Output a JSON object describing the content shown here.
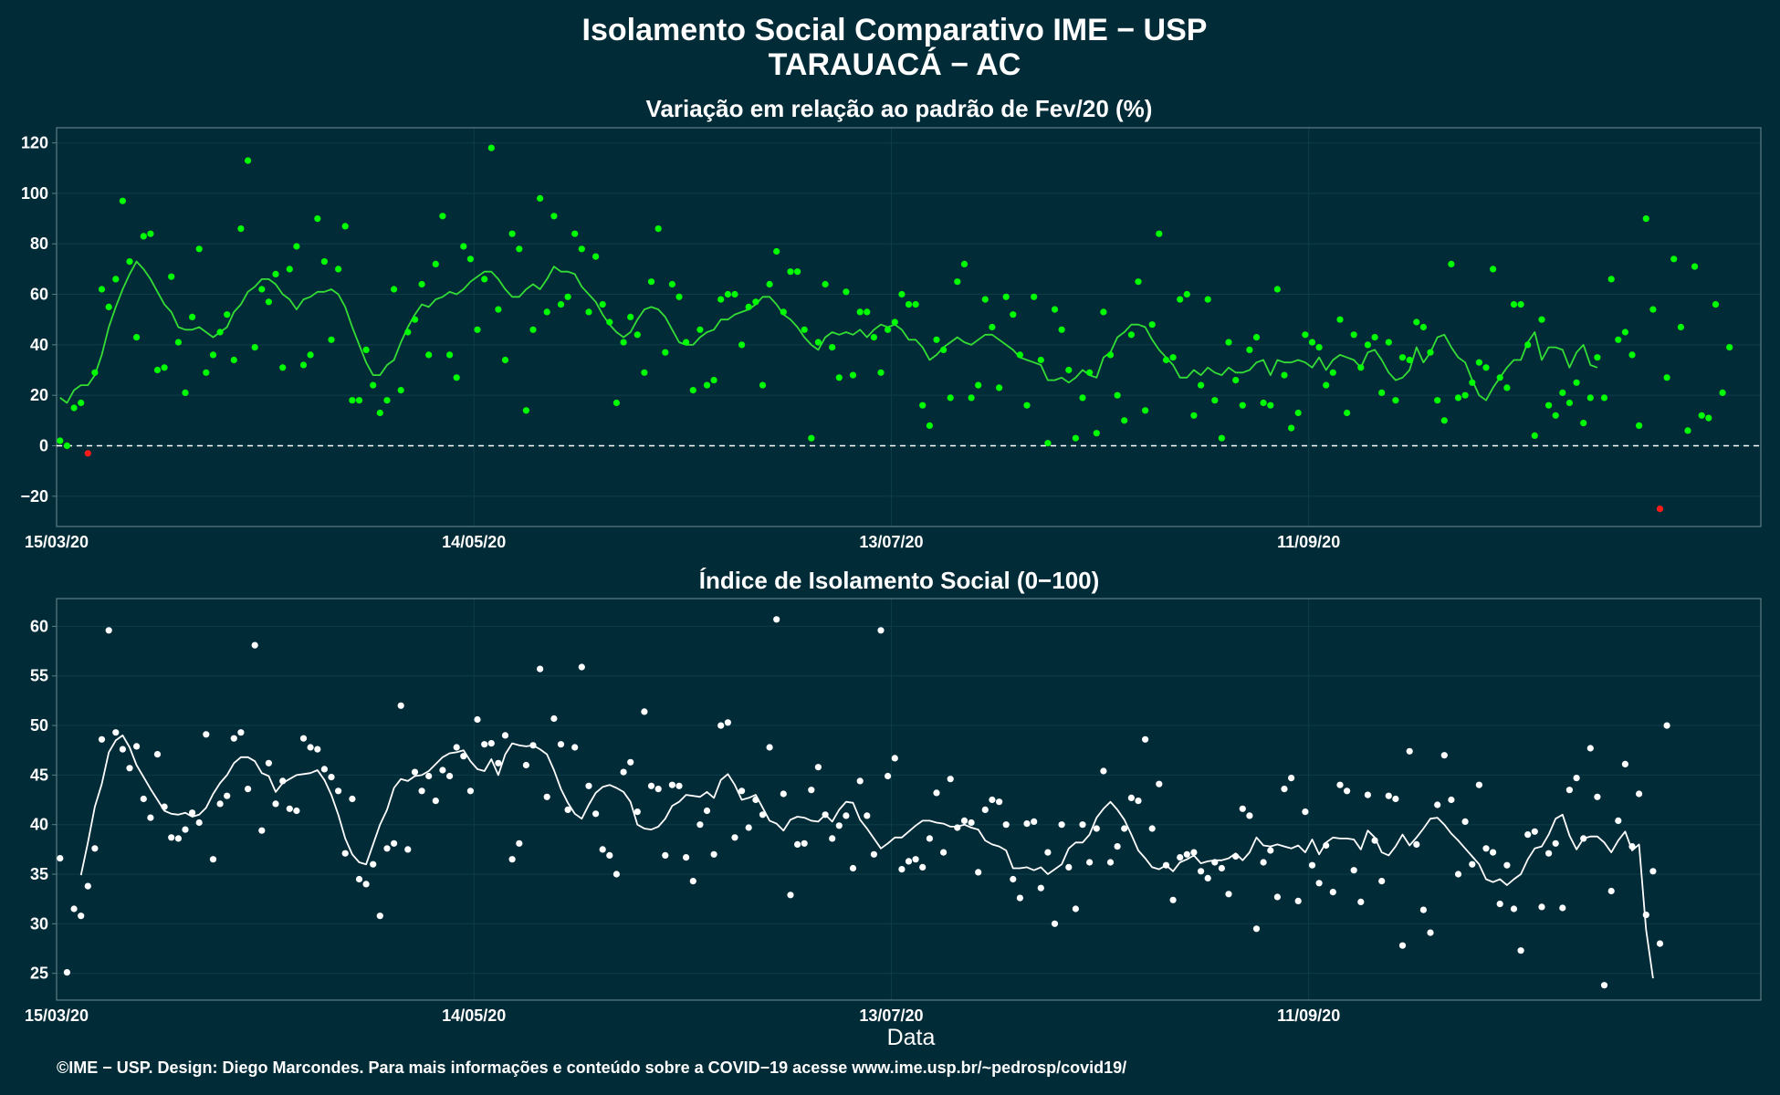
{
  "page": {
    "title_line1": "Isolamento Social Comparativo IME − USP",
    "title_line2": "TARAUACÁ − AC",
    "footer": "©IME − USP. Design: Diego Marcondes. Para mais informações e conteúdo sobre a COVID−19 acesse www.ime.usp.br/~pedrosp/covid19/",
    "xlabel": "Data"
  },
  "colors": {
    "background": "#022b38",
    "grid": "#0d3d47",
    "frame": "#5d7e86",
    "top_points": "#00ff00",
    "top_line": "#33dd33",
    "negative_points": "#ff1a1a",
    "bottom_points": "#ffffff",
    "bottom_line": "#ffffff",
    "zero_line": "#ffffff"
  },
  "chart_data": [
    {
      "type": "scatter",
      "title": "Variação em relação ao padrão de Fev/20 (%)",
      "xlabel": "",
      "ylabel": "",
      "x_start": "15/03/20",
      "x_end": "14/11/20",
      "x_ticks": [
        "15/03/20",
        "14/05/20",
        "13/07/20",
        "11/09/20"
      ],
      "y_ticks": [
        -20,
        0,
        20,
        40,
        60,
        80,
        100,
        120
      ],
      "ylim": [
        -32,
        126
      ],
      "grid": true,
      "reference_line": {
        "y": 0,
        "style": "dashed"
      },
      "series": [
        {
          "kind": "points",
          "values": [
            2,
            0,
            15,
            17,
            -3,
            29,
            62,
            55,
            66,
            97,
            73,
            43,
            83,
            84,
            30,
            31,
            67,
            41,
            21,
            51,
            78,
            29,
            36,
            45,
            52,
            34,
            86,
            113,
            39,
            62,
            57,
            68,
            31,
            70,
            79,
            32,
            36,
            90,
            73,
            42,
            70,
            87,
            18,
            18,
            38,
            24,
            13,
            18,
            62,
            22,
            45,
            50,
            64,
            36,
            72,
            91,
            36,
            27,
            79,
            74,
            46,
            66,
            118,
            54,
            34,
            84,
            78,
            14,
            46,
            98,
            53,
            91,
            56,
            59,
            84,
            78,
            53,
            75,
            56,
            49,
            17,
            41,
            51,
            44,
            29,
            65,
            86,
            37,
            64,
            59,
            41,
            22,
            46,
            24,
            26,
            58,
            60,
            60,
            40,
            55,
            57,
            24,
            64,
            77,
            53,
            69,
            69,
            46,
            3,
            41,
            64,
            39,
            27,
            61,
            28,
            53,
            53,
            43,
            29,
            46,
            49,
            60,
            56,
            56,
            16,
            8,
            42,
            38,
            19,
            65,
            72,
            19,
            24,
            58,
            47,
            23,
            59,
            52,
            36,
            16,
            59,
            34,
            1,
            54,
            46,
            30,
            3,
            19,
            29,
            5,
            53,
            36,
            20,
            10,
            44,
            65,
            14,
            48,
            84,
            34,
            35,
            58,
            60,
            12,
            24,
            58,
            18,
            3,
            41,
            26,
            16,
            38,
            43,
            17,
            16,
            62,
            28,
            7,
            13,
            44,
            41,
            39,
            24,
            29,
            50,
            13,
            44,
            31,
            40,
            43,
            21,
            41,
            18,
            35,
            34,
            49,
            47,
            37,
            18,
            10,
            72,
            19,
            20,
            25,
            33,
            31,
            70,
            27,
            23,
            56,
            56,
            40,
            4,
            50,
            16,
            12,
            21,
            17,
            25,
            9,
            19,
            35,
            19,
            66,
            42,
            45,
            36,
            8,
            90,
            54,
            -25,
            27,
            74,
            47,
            6,
            71,
            12,
            11,
            56,
            21,
            39
          ]
        },
        {
          "kind": "moving_average",
          "start_index": 0,
          "values": [
            19,
            17,
            22,
            24,
            24,
            28,
            36,
            47,
            55,
            62,
            68,
            73,
            70,
            66,
            61,
            56,
            53,
            47,
            46,
            46,
            47,
            45,
            43,
            45,
            47,
            53,
            56,
            61,
            63,
            66,
            66,
            64,
            60,
            58,
            54,
            58,
            59,
            61,
            61,
            62,
            60,
            55,
            47,
            40,
            33,
            28,
            28,
            32,
            34,
            41,
            47,
            52,
            56,
            55,
            58,
            59,
            61,
            60,
            62,
            65,
            67,
            69,
            69,
            66,
            62,
            59,
            59,
            62,
            64,
            62,
            66,
            71,
            69,
            69,
            68,
            63,
            60,
            57,
            52,
            48,
            45,
            43,
            45,
            50,
            54,
            55,
            54,
            51,
            46,
            41,
            40,
            40,
            43,
            45,
            46,
            50,
            50,
            52,
            53,
            54,
            56,
            59,
            59,
            56,
            52,
            50,
            47,
            43,
            40,
            38,
            43,
            45,
            44,
            45,
            44,
            46,
            43,
            46,
            48,
            47,
            48,
            46,
            42,
            42,
            39,
            34,
            36,
            39,
            41,
            43,
            41,
            40,
            42,
            44,
            44,
            42,
            40,
            38,
            35,
            34,
            33,
            32,
            26,
            26,
            27,
            25,
            27,
            30,
            28,
            27,
            35,
            37,
            43,
            45,
            48,
            48,
            47,
            42,
            38,
            35,
            32,
            27,
            27,
            30,
            28,
            31,
            29,
            28,
            31,
            29,
            29,
            30,
            33,
            34,
            28,
            34,
            33,
            33,
            34,
            33,
            31,
            35,
            30,
            34,
            36,
            35,
            34,
            31,
            37,
            38,
            34,
            29,
            26,
            27,
            30,
            39,
            33,
            37,
            43,
            44,
            39,
            35,
            33,
            26,
            20,
            18,
            23,
            27,
            31,
            34,
            34,
            41,
            45,
            34,
            39,
            39,
            38,
            31,
            37,
            40,
            32,
            31
          ]
        }
      ]
    },
    {
      "type": "scatter",
      "title": "Índice de Isolamento Social (0−100)",
      "xlabel": "Data",
      "ylabel": "",
      "x_start": "15/03/20",
      "x_end": "14/11/20",
      "x_ticks": [
        "15/03/20",
        "14/05/20",
        "13/07/20",
        "11/09/20"
      ],
      "y_ticks": [
        25,
        30,
        35,
        40,
        45,
        50,
        55,
        60
      ],
      "ylim": [
        22.3,
        62.8
      ],
      "grid": true,
      "series": [
        {
          "kind": "points",
          "values": [
            36.6,
            25.1,
            31.5,
            30.8,
            33.8,
            37.6,
            48.6,
            59.6,
            49.3,
            47.6,
            45.7,
            47.9,
            42.6,
            40.7,
            47.1,
            41.8,
            38.7,
            38.6,
            39.5,
            41.2,
            40.2,
            49.1,
            36.5,
            42.1,
            42.9,
            48.7,
            49.3,
            43.6,
            58.1,
            39.4,
            46.2,
            42.1,
            44.4,
            41.6,
            41.4,
            48.7,
            47.8,
            47.6,
            45.6,
            44.8,
            43.4,
            37.1,
            42.6,
            34.5,
            34.0,
            36.0,
            30.8,
            37.6,
            38.1,
            52.0,
            37.5,
            45.3,
            43.4,
            44.9,
            42.4,
            45.5,
            44.9,
            47.8,
            46.9,
            43.4,
            50.6,
            48.1,
            48.2,
            46.2,
            49.0,
            36.5,
            38.1,
            46.0,
            48.0,
            55.7,
            42.8,
            50.7,
            48.1,
            41.5,
            47.8,
            55.9,
            43.9,
            41.1,
            37.5,
            36.9,
            35.0,
            45.3,
            46.3,
            41.3,
            51.4,
            43.9,
            43.6,
            36.9,
            44.0,
            43.9,
            36.7,
            34.3,
            40.0,
            41.4,
            37.0,
            50.0,
            50.3,
            38.7,
            43.4,
            39.7,
            42.5,
            41.0,
            47.8,
            60.7,
            43.1,
            32.9,
            38.0,
            38.1,
            43.5,
            45.8,
            41.0,
            38.6,
            39.9,
            40.9,
            35.6,
            44.4,
            40.9,
            37.0,
            59.6,
            44.9,
            46.7,
            35.5,
            36.3,
            36.5,
            35.7,
            38.6,
            43.2,
            37.2,
            44.6,
            39.7,
            40.4,
            40.2,
            35.2,
            41.5,
            42.5,
            42.3,
            40.0,
            34.5,
            32.6,
            40.1,
            40.3,
            33.6,
            37.2,
            30.0,
            40.0,
            35.7,
            31.5,
            40.0,
            36.2,
            39.6,
            45.4,
            36.2,
            37.8,
            39.6,
            42.7,
            42.4,
            48.6,
            39.6,
            44.1,
            35.9,
            32.4,
            36.7,
            37.0,
            37.2,
            35.3,
            34.6,
            36.2,
            35.6,
            33.0,
            36.8,
            41.6,
            40.9,
            29.5,
            36.2,
            37.4,
            32.7,
            43.6,
            44.7,
            32.3,
            41.3,
            35.9,
            34.1,
            37.9,
            33.2,
            44.0,
            43.4,
            35.4,
            32.2,
            43.0,
            38.4,
            34.3,
            42.9,
            42.6,
            27.8,
            47.4,
            38.0,
            31.4,
            29.1,
            42.0,
            47.0,
            42.5,
            35.0,
            40.3,
            36.0,
            44.0,
            37.6,
            37.2,
            32.0,
            35.9,
            31.5,
            27.3,
            39.0,
            39.3,
            31.7,
            37.1,
            38.1,
            31.6,
            43.5,
            44.7,
            38.6,
            47.7,
            42.8,
            23.8,
            33.3,
            40.4,
            46.1,
            37.8,
            43.1,
            30.9,
            35.3,
            28.0,
            50.0
          ]
        },
        {
          "kind": "moving_average",
          "start_index": 3,
          "values": [
            34.9,
            38.2,
            41.8,
            44.1,
            47.3,
            48.5,
            49.0,
            47.8,
            46.0,
            44.8,
            43.6,
            42.5,
            41.4,
            41.1,
            41.0,
            41.2,
            40.8,
            41.0,
            41.7,
            43.1,
            44.2,
            45.0,
            46.2,
            46.8,
            46.8,
            46.4,
            45.2,
            44.9,
            43.3,
            44.2,
            44.6,
            45.0,
            45.1,
            45.2,
            45.5,
            44.5,
            43.0,
            41.0,
            38.6,
            37.0,
            36.2,
            36.0,
            38.0,
            40.0,
            41.5,
            43.7,
            44.6,
            44.4,
            44.9,
            45.0,
            45.4,
            46.1,
            46.8,
            47.2,
            47.3,
            47.5,
            46.4,
            45.6,
            45.4,
            46.6,
            45.0,
            47.1,
            48.2,
            48.0,
            47.9,
            48.0,
            47.6,
            47.1,
            45.5,
            43.6,
            42.2,
            41.1,
            40.6,
            42.0,
            43.2,
            43.8,
            44.0,
            43.7,
            43.3,
            42.3,
            40.0,
            39.6,
            39.5,
            39.8,
            40.6,
            41.9,
            42.3,
            43.0,
            42.9,
            42.8,
            43.3,
            42.7,
            44.5,
            45.1,
            44.0,
            42.5,
            42.7,
            43.0,
            41.7,
            40.4,
            40.1,
            39.4,
            40.5,
            40.8,
            40.7,
            40.4,
            40.3,
            41.0,
            40.3,
            41.5,
            42.3,
            42.2,
            40.5,
            39.6,
            38.6,
            37.6,
            38.1,
            38.7,
            38.7,
            39.3,
            39.9,
            40.4,
            40.4,
            40.2,
            40.1,
            39.8,
            39.8,
            40.0,
            39.7,
            39.5,
            38.4,
            38.0,
            37.8,
            37.4,
            35.6,
            35.6,
            35.7,
            35.4,
            35.7,
            35.0,
            35.5,
            36.0,
            37.6,
            38.2,
            38.2,
            39.0,
            40.7,
            41.6,
            42.3,
            41.5,
            40.5,
            39.0,
            37.4,
            36.6,
            35.7,
            35.5,
            35.9,
            35.3,
            36.2,
            36.5,
            36.9,
            36.1,
            36.3,
            36.4,
            36.4,
            36.6,
            37.1,
            36.4,
            37.2,
            38.7,
            37.9,
            37.8,
            38.0,
            37.8,
            37.6,
            37.9,
            37.2,
            38.5,
            37.0,
            38.2,
            38.7,
            38.6,
            38.6,
            38.5,
            37.5,
            39.4,
            38.7,
            37.2,
            36.9,
            37.8,
            39.0,
            37.9,
            38.7,
            39.6,
            40.6,
            40.7,
            40.0,
            39.1,
            38.4,
            37.6,
            36.8,
            36.0,
            34.5,
            34.2,
            34.5,
            33.9,
            34.5,
            35.0,
            36.5,
            37.6,
            37.8,
            39.0,
            40.6,
            41.0,
            38.9,
            37.5,
            38.6,
            38.8,
            38.8,
            38.2,
            37.2,
            38.4,
            39.3,
            37.4,
            38.0,
            29.4,
            24.5
          ]
        }
      ]
    }
  ]
}
